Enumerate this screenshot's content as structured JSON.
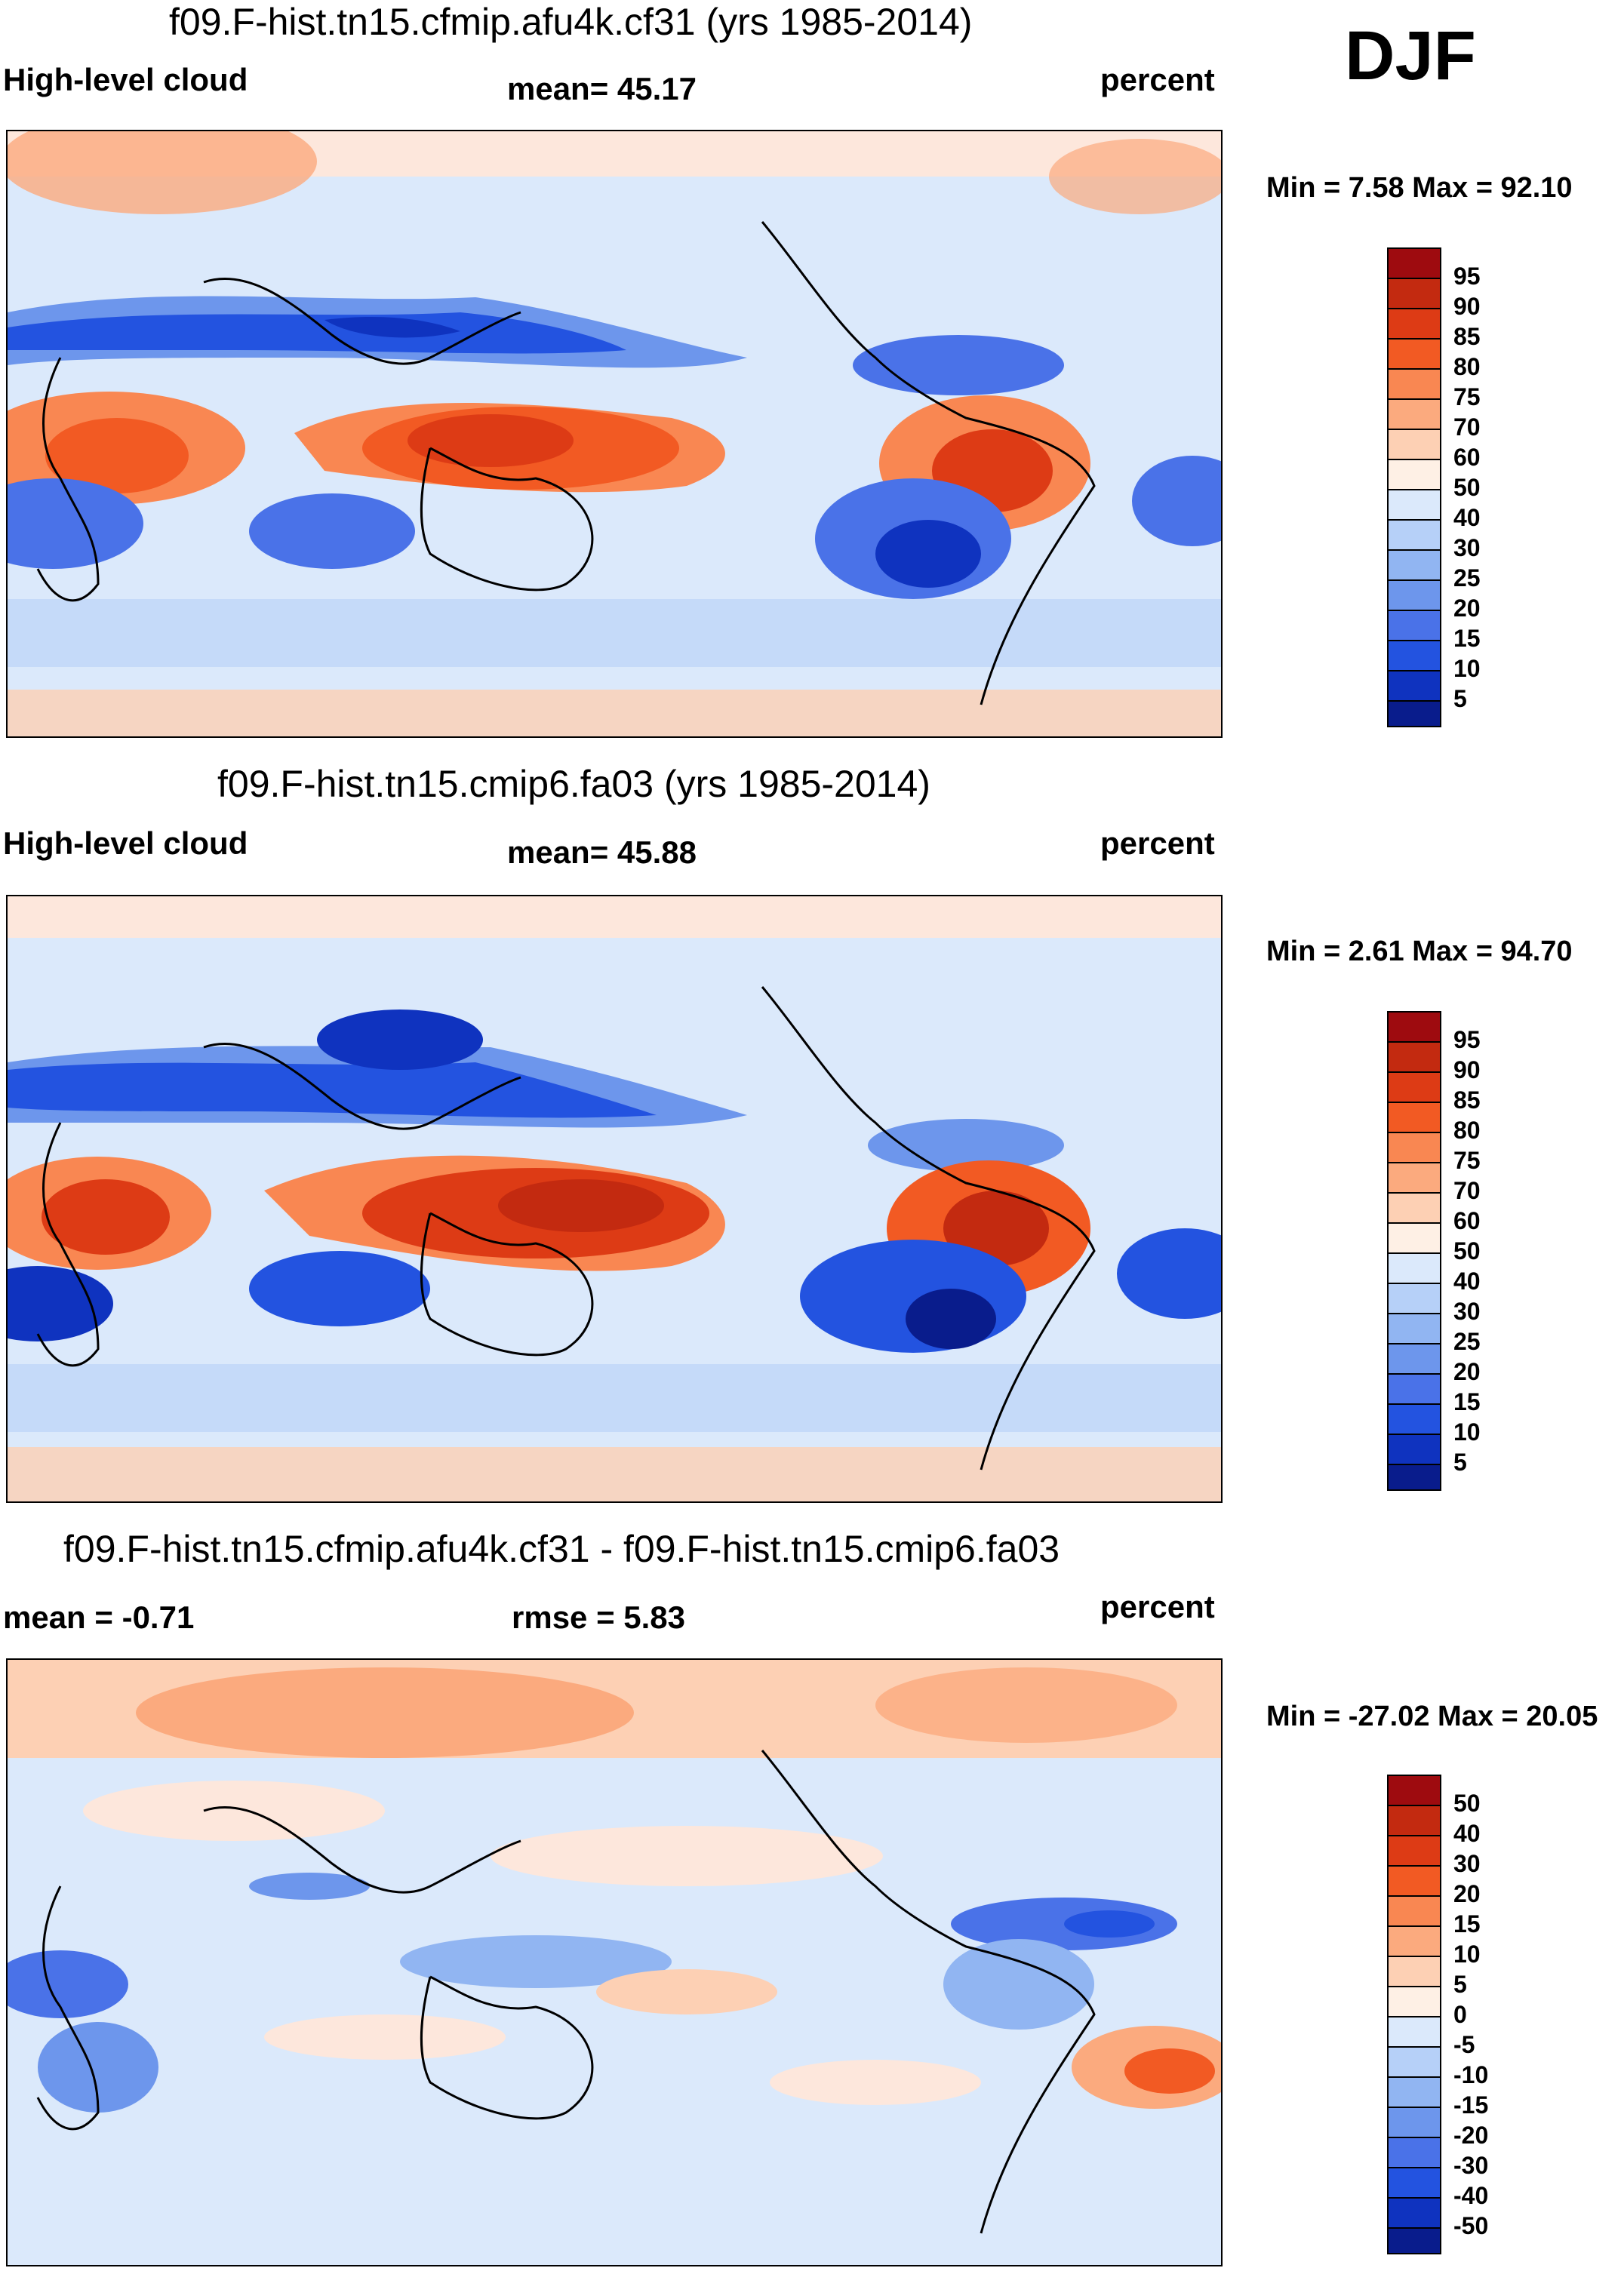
{
  "season": "DJF",
  "panels": [
    {
      "title": "f09.F-hist.tn15.cfmip.afu4k.cf31 (yrs 1985-2014)",
      "left_label": "High-level cloud",
      "center_label": "mean=  45.17",
      "right_label": "percent",
      "minmax": "Min =   7.58 Max =  92.10",
      "colorbar_labels": [
        "95",
        "90",
        "85",
        "80",
        "75",
        "70",
        "60",
        "50",
        "40",
        "30",
        "25",
        "20",
        "15",
        "10",
        "5"
      ]
    },
    {
      "title": "f09.F-hist.tn15.cmip6.fa03 (yrs 1985-2014)",
      "left_label": "High-level cloud",
      "center_label": "mean=  45.88",
      "right_label": "percent",
      "minmax": "Min =   2.61 Max =  94.70",
      "colorbar_labels": [
        "95",
        "90",
        "85",
        "80",
        "75",
        "70",
        "60",
        "50",
        "40",
        "30",
        "25",
        "20",
        "15",
        "10",
        "5"
      ]
    },
    {
      "title": "f09.F-hist.tn15.cfmip.afu4k.cf31 - f09.F-hist.tn15.cmip6.fa03",
      "left_label": "mean =  -0.71",
      "center_label": "rmse =   5.83",
      "right_label": "percent",
      "minmax": "Min = -27.02 Max =  20.05",
      "colorbar_labels": [
        "50",
        "40",
        "30",
        "20",
        "15",
        "10",
        "5",
        "0",
        "-5",
        "-10",
        "-15",
        "-20",
        "-30",
        "-40",
        "-50"
      ]
    }
  ],
  "colors": {
    "colorbar_16": [
      "#9e0b0f",
      "#c32a10",
      "#dd3b15",
      "#f25a23",
      "#f98752",
      "#fbaa7e",
      "#fdd0b4",
      "#fef0e5",
      "#dbe9fb",
      "#b6d0f8",
      "#91b5f2",
      "#6d96ec",
      "#4a72e8",
      "#2353e0",
      "#0f33bf",
      "#091c8c"
    ],
    "land_outline": "#000000"
  },
  "chart_data": [
    {
      "type": "heatmap",
      "title": "f09.F-hist.tn15.cfmip.afu4k.cf31 (yrs 1985-2014)",
      "variable": "High-level cloud",
      "units": "percent",
      "season": "DJF",
      "mean": 45.17,
      "min": 7.58,
      "max": 92.1,
      "levels": [
        5,
        10,
        15,
        20,
        25,
        30,
        40,
        50,
        60,
        70,
        75,
        80,
        85,
        90,
        95
      ]
    },
    {
      "type": "heatmap",
      "title": "f09.F-hist.tn15.cmip6.fa03 (yrs 1985-2014)",
      "variable": "High-level cloud",
      "units": "percent",
      "season": "DJF",
      "mean": 45.88,
      "min": 2.61,
      "max": 94.7,
      "levels": [
        5,
        10,
        15,
        20,
        25,
        30,
        40,
        50,
        60,
        70,
        75,
        80,
        85,
        90,
        95
      ]
    },
    {
      "type": "heatmap",
      "title": "f09.F-hist.tn15.cfmip.afu4k.cf31 - f09.F-hist.tn15.cmip6.fa03",
      "units": "percent",
      "season": "DJF",
      "mean": -0.71,
      "rmse": 5.83,
      "min": -27.02,
      "max": 20.05,
      "levels": [
        -50,
        -40,
        -30,
        -20,
        -15,
        -10,
        -5,
        0,
        5,
        10,
        15,
        20,
        30,
        40,
        50
      ]
    }
  ]
}
